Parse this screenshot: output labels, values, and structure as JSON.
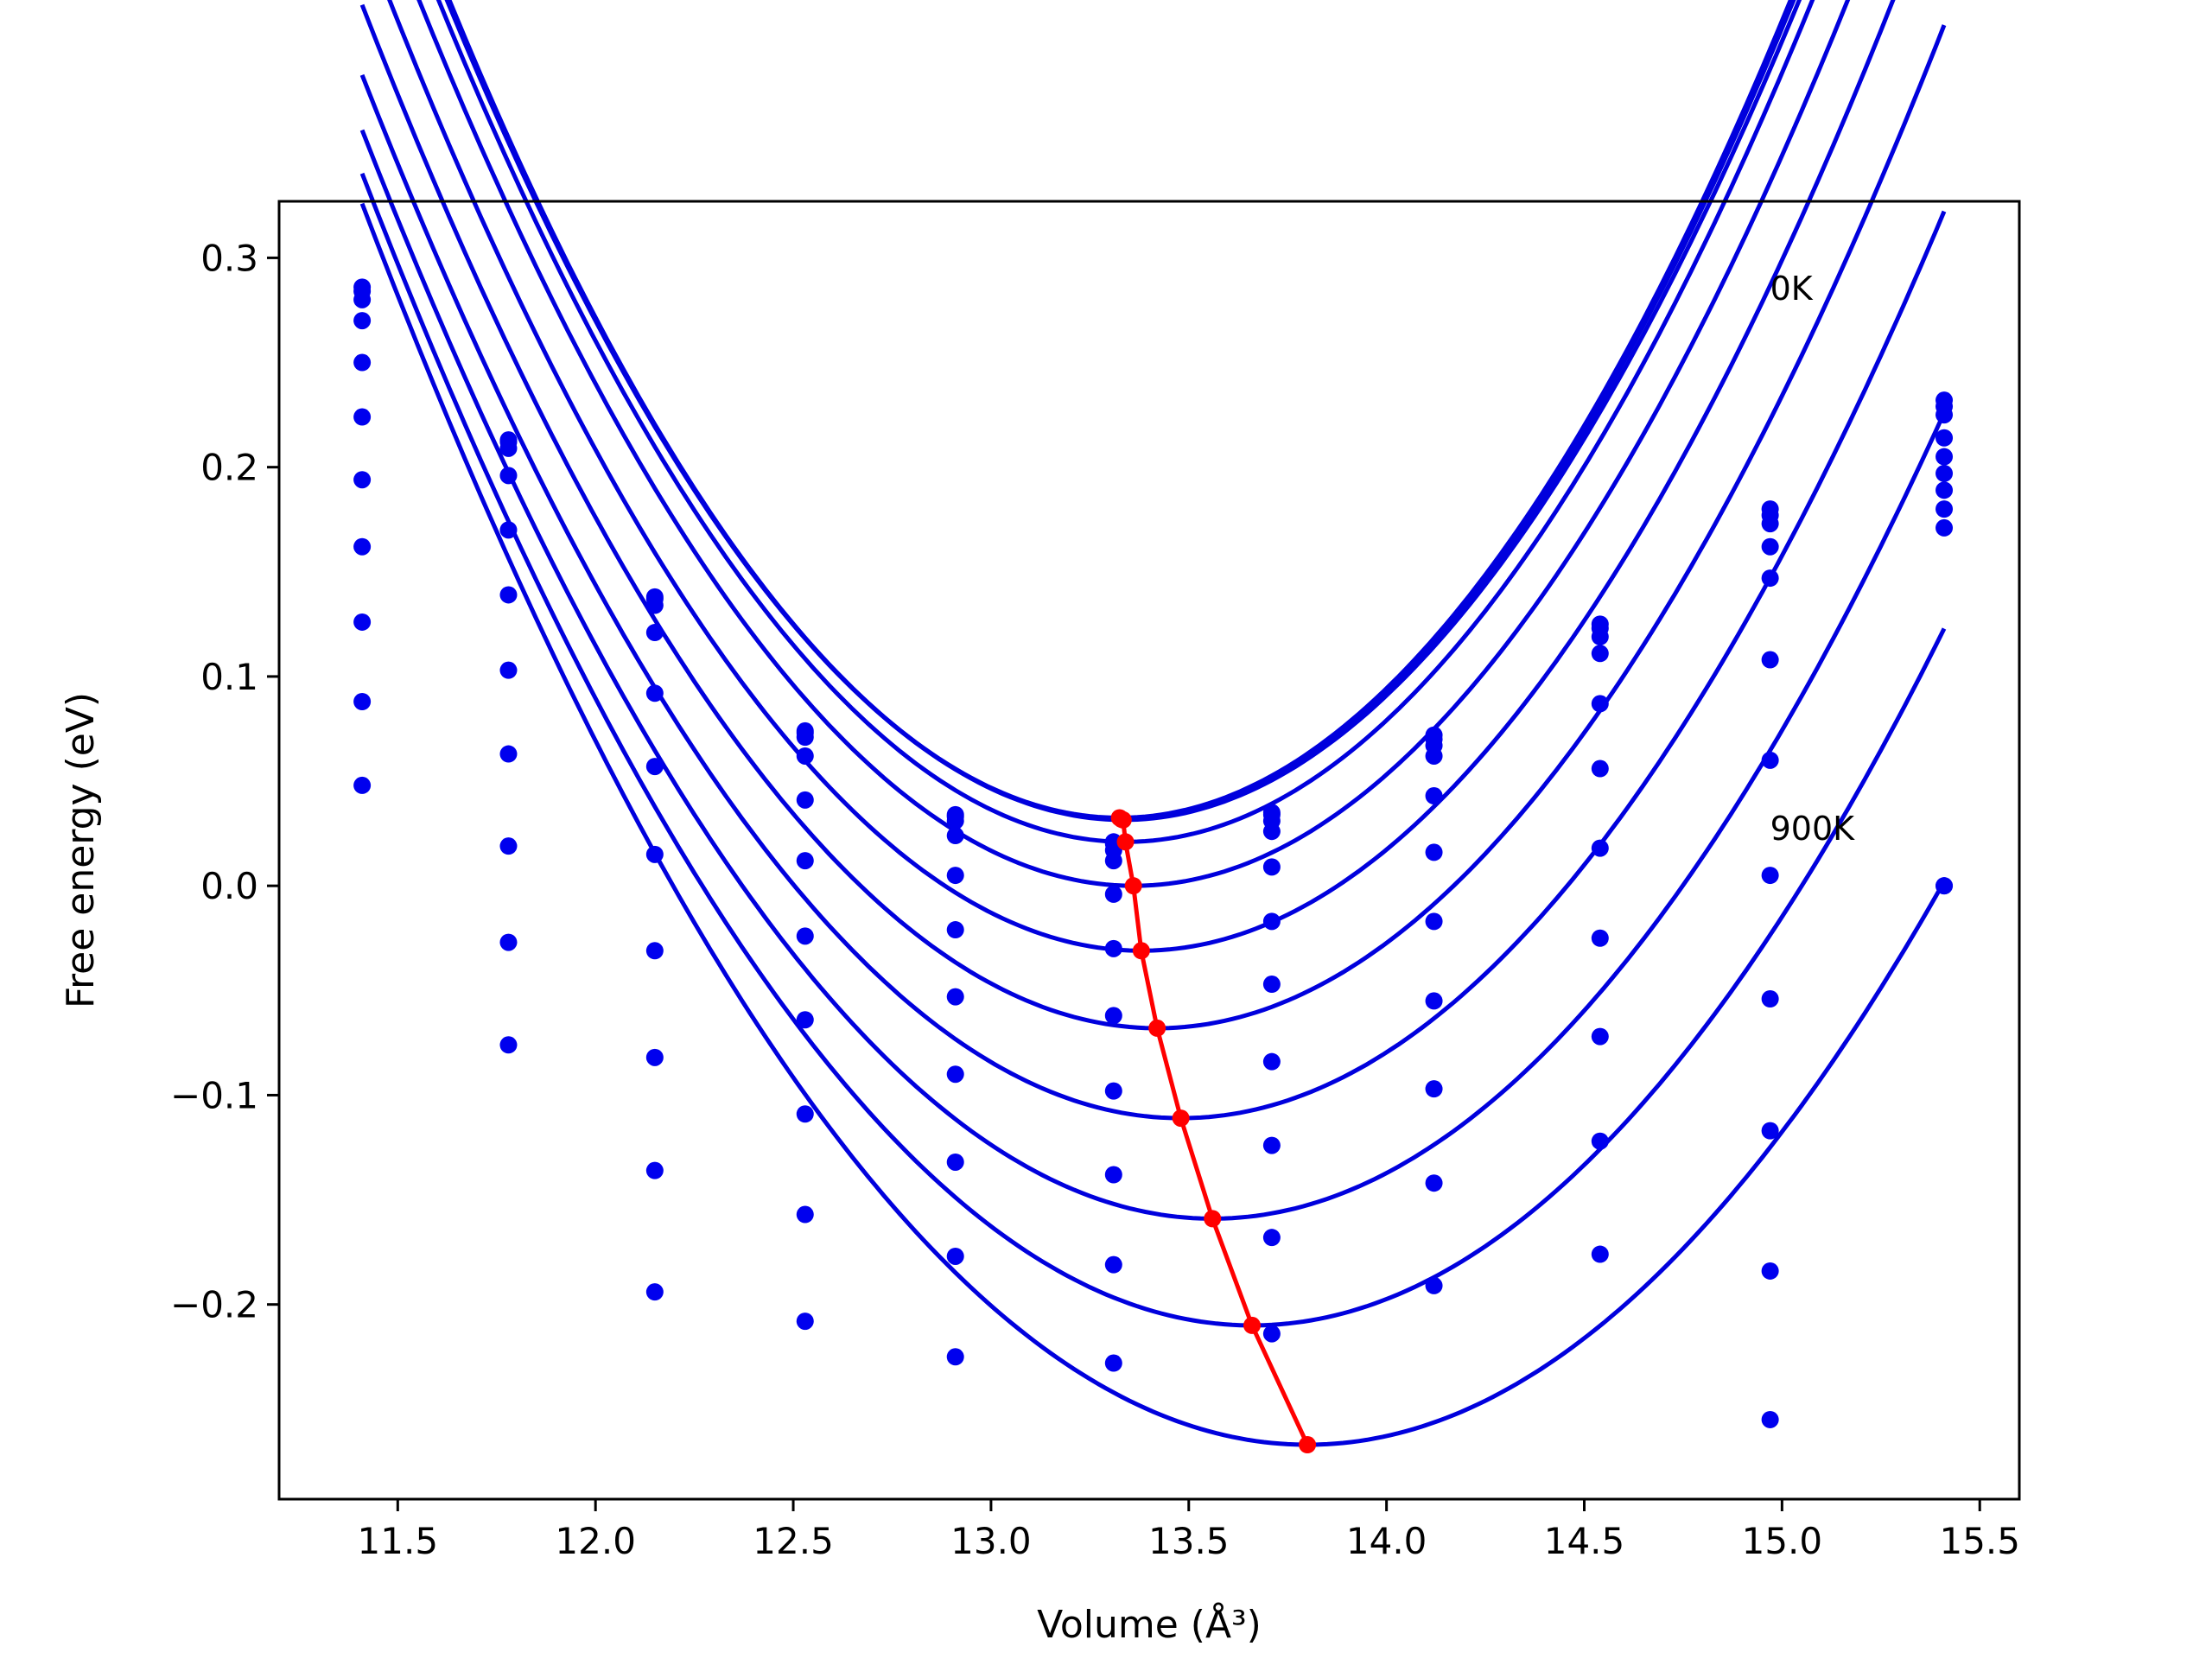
{
  "chart_data": {
    "type": "scatter",
    "title": "",
    "xlabel": "Volume (Å³)",
    "ylabel": "Free energy (eV)",
    "xlim": [
      11.2,
      15.6
    ],
    "ylim": [
      -0.293,
      0.327
    ],
    "xticks": [
      11.5,
      12.0,
      12.5,
      13.0,
      13.5,
      14.0,
      14.5,
      15.0,
      15.5
    ],
    "xtick_labels": [
      "11.5",
      "12.0",
      "12.5",
      "13.0",
      "13.5",
      "14.0",
      "14.5",
      "15.0",
      "15.5"
    ],
    "yticks": [
      -0.2,
      -0.1,
      0.0,
      0.1,
      0.2,
      0.3
    ],
    "ytick_labels": [
      "−0.2",
      "−0.1",
      "0.0",
      "0.1",
      "0.2",
      "0.3"
    ],
    "grid": false,
    "annotations": [
      {
        "text": "0K",
        "x": 14.97,
        "y": 0.28
      },
      {
        "text": "900K",
        "x": 14.97,
        "y": 0.022
      }
    ],
    "curve_x_range": [
      11.41,
      15.41
    ],
    "volumes": [
      11.41,
      11.78,
      12.15,
      12.53,
      12.91,
      13.31,
      13.71,
      14.12,
      14.54,
      14.97,
      15.41
    ],
    "series": [
      {
        "points": [
          0.286,
          0.213,
          0.138,
          0.074,
          0.034,
          0.021,
          0.035,
          0.072,
          0.125,
          0.18,
          0.232
        ],
        "fit": {
          "a": 0.1357,
          "b": 13.325,
          "c": 0.0325
        }
      },
      {
        "points": [
          0.284,
          0.212,
          0.137,
          0.073,
          0.033,
          0.02,
          0.034,
          0.07,
          0.123,
          0.177,
          0.229
        ],
        "fit": {
          "a": 0.1355,
          "b": 13.33,
          "c": 0.0318
        }
      },
      {
        "points": [
          0.28,
          0.209,
          0.134,
          0.071,
          0.031,
          0.017,
          0.031,
          0.067,
          0.119,
          0.173,
          0.225
        ],
        "fit": {
          "a": 0.134,
          "b": 13.334,
          "c": 0.0315
        }
      },
      {
        "points": [
          0.27,
          0.196,
          0.121,
          0.062,
          0.024,
          0.012,
          0.026,
          0.062,
          0.111,
          0.162,
          0.214
        ],
        "fit": {
          "a": 0.1333,
          "b": 13.34,
          "c": 0.021
        }
      },
      {
        "points": [
          0.25,
          0.17,
          0.092,
          0.041,
          0.005,
          -0.004,
          0.009,
          0.043,
          0.087,
          0.147,
          0.205
        ],
        "fit": {
          "a": 0.1297,
          "b": 13.36,
          "c": 0.0
        }
      },
      {
        "points": [
          0.224,
          0.139,
          0.057,
          0.012,
          -0.021,
          -0.03,
          -0.017,
          0.016,
          0.056,
          0.108,
          0.197
        ],
        "fit": {
          "a": 0.1257,
          "b": 13.38,
          "c": -0.031
        }
      },
      {
        "points": [
          0.194,
          0.103,
          0.015,
          -0.024,
          -0.053,
          -0.062,
          -0.047,
          -0.017,
          0.018,
          0.06,
          0.189
        ],
        "fit": {
          "a": 0.121,
          "b": 13.42,
          "c": -0.068
        }
      },
      {
        "points": [
          0.162,
          0.063,
          -0.031,
          -0.064,
          -0.09,
          -0.098,
          -0.084,
          -0.055,
          -0.025,
          0.005,
          0.18
        ],
        "fit": {
          "a": 0.1163,
          "b": 13.48,
          "c": -0.111
        }
      },
      {
        "points": [
          0.126,
          0.019,
          -0.082,
          -0.109,
          -0.132,
          -0.138,
          -0.124,
          -0.097,
          -0.072,
          -0.054,
          0.171
        ],
        "fit": {
          "a": 0.1125,
          "b": 13.56,
          "c": -0.159
        }
      },
      {
        "points": [
          0.088,
          -0.027,
          -0.136,
          -0.157,
          -0.177,
          -0.181,
          -0.168,
          -0.142,
          -0.122,
          -0.117,
          0.0
        ],
        "fit": {
          "a": 0.1087,
          "b": 13.66,
          "c": -0.21
        }
      },
      {
        "points": [
          0.048,
          -0.076,
          -0.194,
          -0.208,
          -0.225,
          -0.228,
          -0.214,
          -0.191,
          -0.176,
          -0.184,
          0.0
        ],
        "fit": {
          "a": 0.1038,
          "b": 13.8,
          "c": -0.267
        }
      },
      {
        "points": [
          null,
          null,
          null,
          null,
          null,
          null,
          null,
          null,
          null,
          -0.255,
          null
        ],
        "fit": null
      }
    ],
    "minima_line": {
      "x": [
        13.325,
        13.33,
        13.334,
        13.34,
        13.36,
        13.38,
        13.42,
        13.48,
        13.56,
        13.66,
        13.8
      ],
      "y": [
        0.0325,
        0.0318,
        0.0315,
        0.021,
        0.0,
        -0.031,
        -0.068,
        -0.111,
        -0.159,
        -0.21,
        -0.267
      ]
    },
    "colors": {
      "points": "#0000ee",
      "fits": "#0000dd",
      "minima": "#ff0000",
      "axes": "#000000"
    }
  }
}
